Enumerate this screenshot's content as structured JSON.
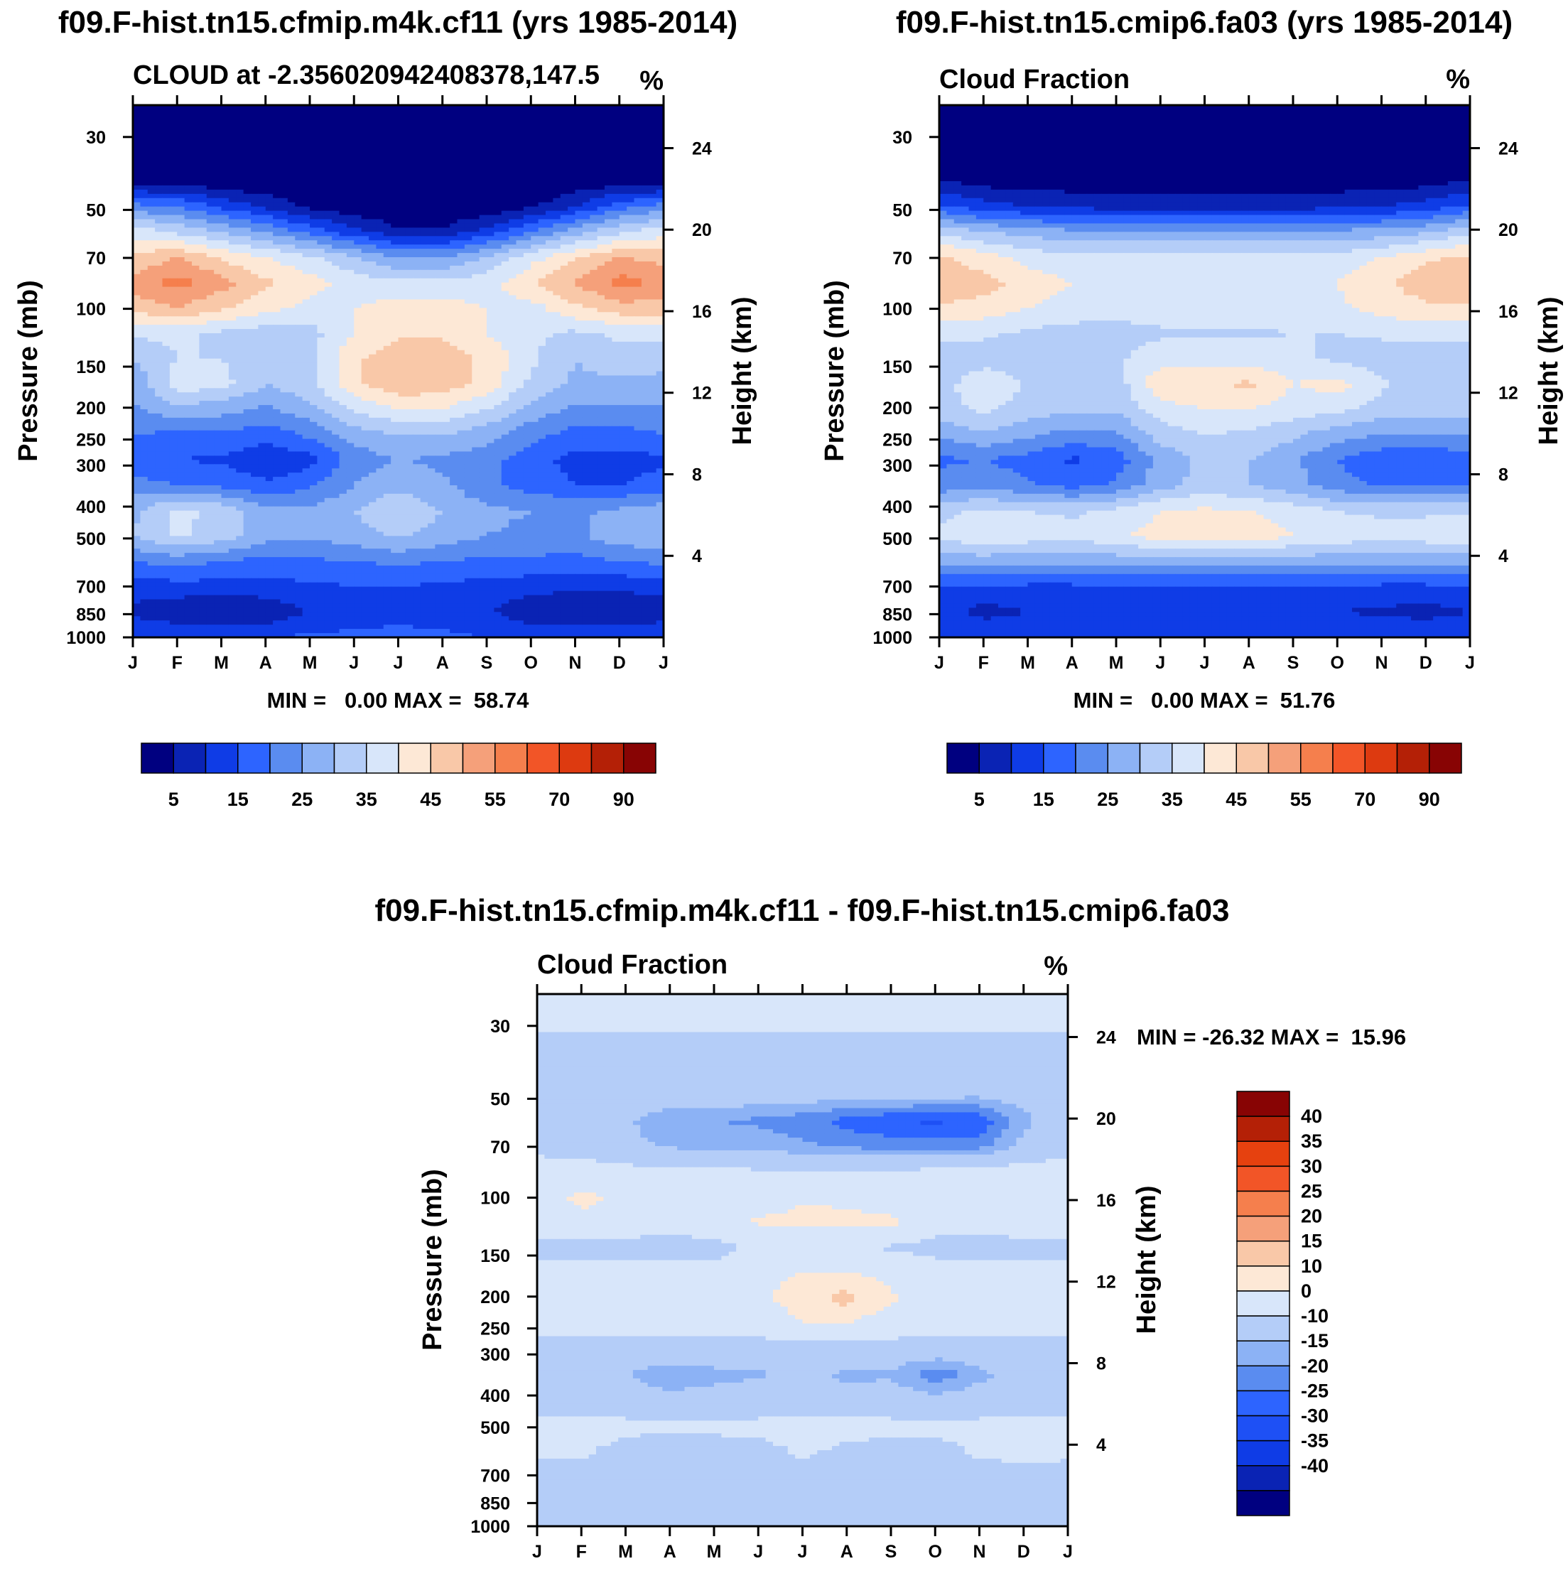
{
  "chart_data": [
    {
      "type": "heatmap",
      "id": "p1",
      "title": "f09.F-hist.tn15.cfmip.m4k.cf11 (yrs 1985-2014)",
      "subtitle_left": "CLOUD at -2.356020942408378,147.5",
      "units": "%",
      "ylabel": "Pressure (mb)",
      "ylabel_right": "Height (km)",
      "x_ticks": [
        "J",
        "F",
        "M",
        "A",
        "M",
        "J",
        "J",
        "A",
        "S",
        "O",
        "N",
        "D",
        "J"
      ],
      "y_ticks": [
        "30",
        "50",
        "70",
        "100",
        "150",
        "200",
        "250",
        "300",
        "400",
        "500",
        "700",
        "850",
        "1000"
      ],
      "y_ticks_right": [
        "24",
        "20",
        "16",
        "12",
        "8",
        "4"
      ],
      "stats": "MIN =   0.00 MAX =  58.74",
      "colorbar_labels": [
        "5",
        "15",
        "25",
        "35",
        "45",
        "55",
        "70",
        "90"
      ],
      "colors": [
        "#000080",
        "#0a23b4",
        "#0f3ce6",
        "#2d64ff",
        "#5a8cf0",
        "#8cb2f5",
        "#b4cdf8",
        "#d8e6fa",
        "#fde8d6",
        "#f9c8a8",
        "#f5a07a",
        "#f57f4d",
        "#f25527",
        "#dd3a10",
        "#b42006",
        "#880404"
      ],
      "levels": [
        5,
        10,
        15,
        20,
        25,
        30,
        35,
        40,
        45,
        50,
        55,
        60,
        70,
        80,
        90
      ],
      "rows_desc_top_to_bottom": [
        [
          0,
          0,
          0,
          0,
          0,
          0,
          0,
          0,
          0,
          0,
          0,
          0,
          0
        ],
        [
          0,
          0,
          0,
          0,
          0,
          0,
          0,
          0,
          0,
          0,
          0,
          0,
          0
        ],
        [
          0,
          0,
          0,
          0,
          0,
          0,
          0,
          0,
          0,
          0,
          0,
          0,
          0
        ],
        [
          2,
          2,
          1,
          0,
          0,
          0,
          0,
          0,
          0,
          0,
          1,
          2,
          2
        ],
        [
          22,
          20,
          14,
          9,
          4,
          1,
          0,
          0,
          1,
          4,
          10,
          18,
          22
        ],
        [
          38,
          34,
          30,
          25,
          18,
          12,
          6,
          6,
          12,
          20,
          28,
          34,
          38
        ],
        [
          46,
          50,
          44,
          40,
          36,
          30,
          25,
          25,
          30,
          38,
          44,
          50,
          48
        ],
        [
          52,
          57,
          52,
          46,
          42,
          38,
          36,
          36,
          38,
          44,
          50,
          57,
          54
        ],
        [
          47,
          50,
          46,
          42,
          38,
          40,
          42,
          42,
          40,
          38,
          44,
          48,
          48
        ],
        [
          36,
          36,
          34,
          32,
          33,
          40,
          44,
          44,
          40,
          36,
          34,
          36,
          37
        ],
        [
          30,
          35,
          35,
          31,
          34,
          44,
          48,
          48,
          44,
          36,
          30,
          33,
          31
        ],
        [
          26,
          38,
          37,
          30,
          34,
          44,
          49,
          48,
          43,
          34,
          29,
          29,
          29
        ],
        [
          24,
          28,
          27,
          24,
          28,
          36,
          40,
          40,
          35,
          28,
          24,
          24,
          24
        ],
        [
          20,
          19,
          19,
          17,
          21,
          27,
          30,
          30,
          27,
          22,
          18,
          18,
          20
        ],
        [
          17,
          15,
          14,
          11,
          13,
          22,
          25,
          24,
          22,
          17,
          13,
          13,
          14
        ],
        [
          22,
          20,
          19,
          16,
          19,
          25,
          29,
          26,
          21,
          18,
          15,
          15,
          17
        ],
        [
          29,
          36,
          34,
          27,
          26,
          30,
          34,
          30,
          26,
          25,
          24,
          26,
          28
        ],
        [
          30,
          36,
          33,
          27,
          26,
          28,
          31,
          28,
          25,
          24,
          24,
          28,
          29
        ],
        [
          20,
          22,
          20,
          18,
          19,
          20,
          21,
          20,
          19,
          19,
          18,
          20,
          21
        ],
        [
          12,
          13,
          13,
          13,
          14,
          15,
          15,
          14,
          13,
          12,
          11,
          11,
          12
        ],
        [
          9,
          6,
          5,
          6,
          10,
          13,
          14,
          13,
          11,
          6,
          5,
          5,
          7
        ],
        [
          15,
          15,
          14,
          15,
          16,
          16,
          16,
          16,
          15,
          14,
          14,
          14,
          15
        ]
      ]
    },
    {
      "type": "heatmap",
      "id": "p2",
      "title": "f09.F-hist.tn15.cmip6.fa03 (yrs 1985-2014)",
      "subtitle_left": "Cloud Fraction",
      "units": "%",
      "ylabel": "Pressure (mb)",
      "ylabel_right": "Height (km)",
      "x_ticks": [
        "J",
        "F",
        "M",
        "A",
        "M",
        "J",
        "J",
        "A",
        "S",
        "O",
        "N",
        "D",
        "J"
      ],
      "y_ticks": [
        "30",
        "50",
        "70",
        "100",
        "150",
        "200",
        "250",
        "300",
        "400",
        "500",
        "700",
        "850",
        "1000"
      ],
      "y_ticks_right": [
        "24",
        "20",
        "16",
        "12",
        "8",
        "4"
      ],
      "stats": "MIN =   0.00 MAX =  51.76",
      "colorbar_labels": [
        "5",
        "15",
        "25",
        "35",
        "45",
        "55",
        "70",
        "90"
      ],
      "colors": [
        "#000080",
        "#0a23b4",
        "#0f3ce6",
        "#2d64ff",
        "#5a8cf0",
        "#8cb2f5",
        "#b4cdf8",
        "#d8e6fa",
        "#fde8d6",
        "#f9c8a8",
        "#f5a07a",
        "#f57f4d",
        "#f25527",
        "#dd3a10",
        "#b42006",
        "#880404"
      ],
      "levels": [
        5,
        10,
        15,
        20,
        25,
        30,
        35,
        40,
        45,
        50,
        55,
        60,
        70,
        80,
        90
      ],
      "rows_desc_top_to_bottom": [
        [
          0,
          0,
          0,
          0,
          0,
          0,
          0,
          0,
          0,
          0,
          0,
          0,
          0
        ],
        [
          0,
          0,
          0,
          0,
          0,
          0,
          0,
          0,
          0,
          0,
          0,
          0,
          0
        ],
        [
          0,
          0,
          0,
          0,
          0,
          0,
          0,
          0,
          0,
          0,
          0,
          0,
          0
        ],
        [
          5,
          3,
          2,
          2,
          2,
          2,
          2,
          2,
          2,
          2,
          2,
          3,
          5
        ],
        [
          16,
          12,
          10,
          9,
          8,
          8,
          8,
          8,
          8,
          9,
          10,
          12,
          16
        ],
        [
          34,
          30,
          28,
          26,
          26,
          26,
          26,
          26,
          26,
          26,
          27,
          29,
          34
        ],
        [
          46,
          42,
          38,
          36,
          36,
          36,
          36,
          36,
          36,
          37,
          40,
          44,
          46
        ],
        [
          50,
          47,
          43,
          40,
          39,
          39,
          39,
          39,
          39,
          40,
          44,
          48,
          50
        ],
        [
          44,
          43,
          40,
          38,
          37,
          38,
          38,
          38,
          38,
          39,
          42,
          44,
          44
        ],
        [
          37,
          36,
          34,
          33,
          33,
          34,
          34,
          34,
          35,
          35,
          36,
          37,
          37
        ],
        [
          30,
          32,
          32,
          34,
          34,
          38,
          38,
          38,
          36,
          34,
          32,
          32,
          30
        ],
        [
          32,
          40,
          34,
          30,
          32,
          44,
          44,
          46,
          40,
          42,
          36,
          32,
          31
        ],
        [
          33,
          36,
          33,
          31,
          31,
          38,
          40,
          40,
          38,
          36,
          33,
          32,
          32
        ],
        [
          26,
          29,
          26,
          23,
          24,
          32,
          35,
          34,
          31,
          27,
          25,
          25,
          25
        ],
        [
          19,
          20,
          18,
          14,
          17,
          27,
          31,
          30,
          26,
          20,
          16,
          16,
          17
        ],
        [
          22,
          23,
          21,
          18,
          21,
          28,
          32,
          30,
          27,
          22,
          19,
          19,
          20
        ],
        [
          33,
          36,
          35,
          34,
          36,
          40,
          41,
          40,
          38,
          35,
          34,
          34,
          34
        ],
        [
          36,
          40,
          38,
          37,
          39,
          42,
          44,
          43,
          40,
          38,
          37,
          38,
          38
        ],
        [
          26,
          27,
          26,
          26,
          27,
          28,
          28,
          28,
          27,
          27,
          26,
          26,
          27
        ],
        [
          14,
          14,
          14,
          14,
          14,
          14,
          14,
          14,
          14,
          14,
          14,
          14,
          14
        ],
        [
          12,
          8,
          10,
          11,
          12,
          13,
          13,
          13,
          12,
          10,
          9,
          8,
          10
        ],
        [
          15,
          15,
          15,
          15,
          15,
          15,
          15,
          15,
          15,
          15,
          15,
          15,
          15
        ]
      ]
    },
    {
      "type": "heatmap",
      "id": "p3",
      "title": "f09.F-hist.tn15.cfmip.m4k.cf11 - f09.F-hist.tn15.cmip6.fa03",
      "subtitle_left": "Cloud Fraction",
      "units": "%",
      "ylabel": "Pressure (mb)",
      "ylabel_right": "Height (km)",
      "x_ticks": [
        "J",
        "F",
        "M",
        "A",
        "M",
        "J",
        "J",
        "A",
        "S",
        "O",
        "N",
        "D",
        "J"
      ],
      "y_ticks": [
        "30",
        "50",
        "70",
        "100",
        "150",
        "200",
        "250",
        "300",
        "400",
        "500",
        "700",
        "850",
        "1000"
      ],
      "y_ticks_right": [
        "24",
        "20",
        "16",
        "12",
        "8",
        "4"
      ],
      "stats": "MIN = -26.32 MAX =  15.96",
      "colorbar_labels": [
        "40",
        "35",
        "30",
        "25",
        "20",
        "15",
        "10",
        "0",
        "-10",
        "-15",
        "-20",
        "-25",
        "-30",
        "-35",
        "-40"
      ],
      "colors": [
        "#000080",
        "#0a23b4",
        "#0f3ce6",
        "#1e50f5",
        "#2d64ff",
        "#5a8cf0",
        "#8cb2f5",
        "#b4cdf8",
        "#d8e6fa",
        "#fde8d6",
        "#f9c8a8",
        "#f5a07a",
        "#f57f4d",
        "#f25527",
        "#e6410f",
        "#b42006",
        "#880404"
      ],
      "levels": [
        -40,
        -35,
        -30,
        -25,
        -20,
        -15,
        -10,
        0,
        10,
        15,
        20,
        25,
        30,
        35,
        40
      ],
      "rows_desc_top_to_bottom": [
        [
          3,
          3,
          3,
          3,
          3,
          3,
          3,
          3,
          3,
          3,
          3,
          3,
          3
        ],
        [
          3,
          3,
          3,
          3,
          3,
          3,
          3,
          3,
          3,
          3,
          3,
          3,
          3
        ],
        [
          -4,
          -4,
          -4,
          -4,
          -4,
          -4,
          -4,
          -4,
          -4,
          -4,
          -4,
          -4,
          -4
        ],
        [
          -4,
          -4,
          -4,
          -4,
          -4,
          -4,
          -4,
          -4,
          -4,
          -4,
          -4,
          -4,
          -4
        ],
        [
          -4,
          -4,
          -5,
          -6,
          -6,
          -6,
          -7,
          -7,
          -7,
          -8,
          -9,
          -6,
          -4
        ],
        [
          -4,
          -5,
          -9,
          -14,
          -15,
          -16,
          -18,
          -22,
          -25,
          -26,
          -24,
          -12,
          -5
        ],
        [
          -2,
          -4,
          -8,
          -11,
          -12,
          -12,
          -14,
          -16,
          -17,
          -18,
          -17,
          -8,
          -3
        ],
        [
          3,
          4,
          3,
          2,
          2,
          1,
          0,
          0,
          1,
          2,
          3,
          4,
          4
        ],
        [
          6,
          12,
          8,
          5,
          5,
          6,
          9,
          9,
          6,
          5,
          6,
          7,
          6
        ],
        [
          5,
          8,
          6,
          5,
          5,
          11,
          12,
          11,
          12,
          4,
          4,
          5,
          5
        ],
        [
          -2,
          -3,
          -4,
          -4,
          -3,
          2,
          3,
          0,
          -1,
          -3,
          -4,
          -3,
          -2
        ],
        [
          2,
          3,
          3,
          3,
          3,
          8,
          10,
          10,
          8,
          4,
          3,
          3,
          2
        ],
        [
          4,
          4,
          4,
          4,
          4,
          9,
          13,
          17,
          11,
          5,
          4,
          4,
          4
        ],
        [
          3,
          3,
          3,
          3,
          3,
          5,
          10,
          10,
          6,
          3,
          3,
          3,
          3
        ],
        [
          -4,
          -4,
          -4,
          -4,
          -4,
          -4,
          -4,
          -4,
          -4,
          -4,
          -4,
          -4,
          -4
        ],
        [
          -5,
          -9,
          -10,
          -14,
          -12,
          -11,
          -6,
          -12,
          -11,
          -19,
          -12,
          -6,
          -5
        ],
        [
          -4,
          -6,
          -6,
          -8,
          -7,
          -6,
          -4,
          -6,
          -6,
          -8,
          -6,
          -4,
          -4
        ],
        [
          2,
          3,
          2,
          1,
          2,
          2,
          3,
          2,
          2,
          2,
          2,
          2,
          2
        ],
        [
          2,
          1,
          -2,
          -3,
          -3,
          -2,
          1,
          -1,
          -2,
          -2,
          1,
          2,
          2
        ],
        [
          -3,
          -2,
          -2,
          -2,
          -3,
          -3,
          -2,
          -3,
          -3,
          -3,
          -2,
          -2,
          -3
        ],
        [
          -2,
          -3,
          -2,
          -2,
          -2,
          -2,
          -3,
          -2,
          -2,
          -2,
          -2,
          -3,
          -2
        ],
        [
          -1,
          -1,
          -1,
          -1,
          -1,
          -1,
          -1,
          -1,
          -1,
          -1,
          -1,
          -1,
          -1
        ]
      ]
    }
  ]
}
